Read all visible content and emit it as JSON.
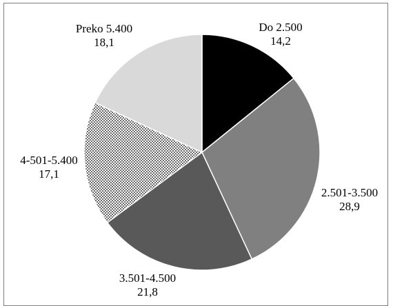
{
  "chart_data": {
    "type": "pie",
    "categories": [
      "Do 2.500",
      "2.501-3.500",
      "3.501-4.500",
      "4-501-5.400",
      "Preko 5.400"
    ],
    "values": [
      14.2,
      28.9,
      21.8,
      17.1,
      18.1
    ],
    "value_labels": [
      "14,2",
      "28,9",
      "21,8",
      "17,1",
      "18,1"
    ],
    "colors": [
      "#000000",
      "#808080",
      "#595959",
      "dotted-pattern",
      "#d9d9d9"
    ],
    "start_angle": "12 o'clock",
    "direction": "clockwise",
    "title": "",
    "legend": "none"
  }
}
